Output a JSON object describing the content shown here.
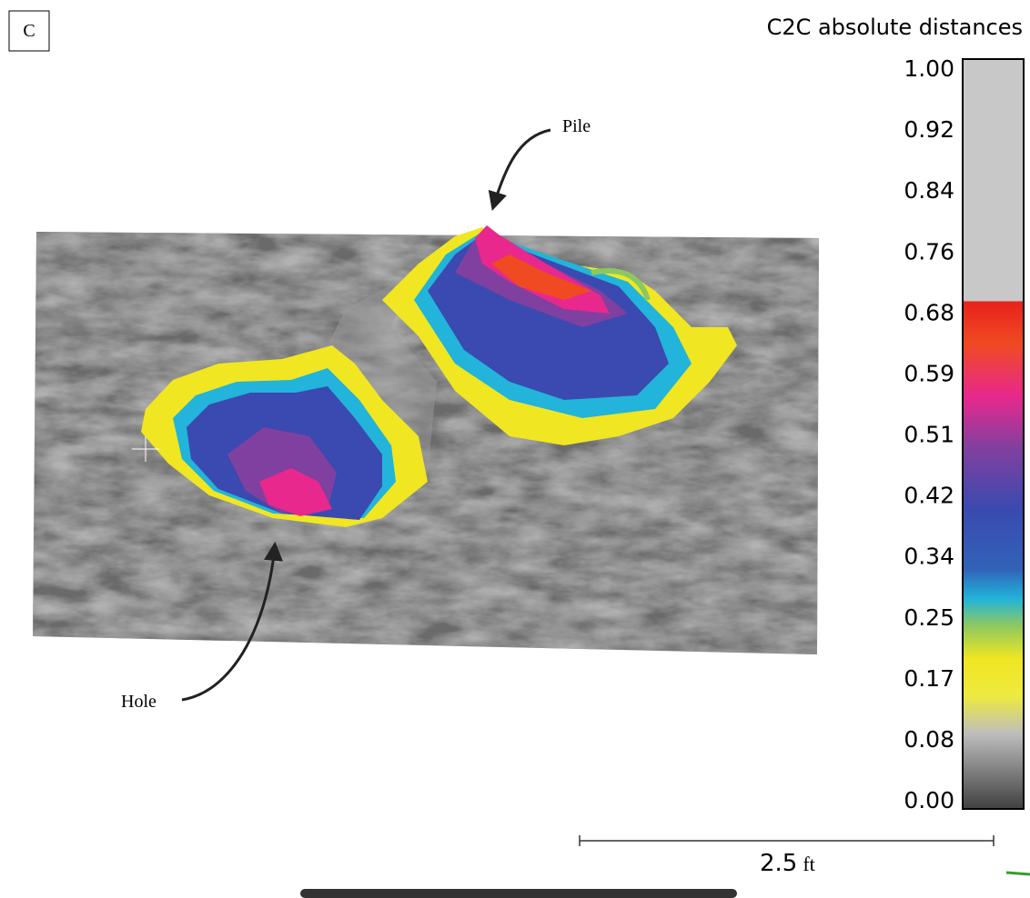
{
  "panel_label": "C",
  "colorbar": {
    "title": "C2C absolute distances",
    "ticks": [
      "1.00",
      "0.92",
      "0.84",
      "0.76",
      "0.68",
      "0.59",
      "0.51",
      "0.42",
      "0.34",
      "0.25",
      "0.17",
      "0.08",
      "0.00"
    ]
  },
  "annotations": {
    "pile": "Pile",
    "hole": "Hole"
  },
  "scale_bar": {
    "length": "2.5",
    "unit": "ft"
  }
}
